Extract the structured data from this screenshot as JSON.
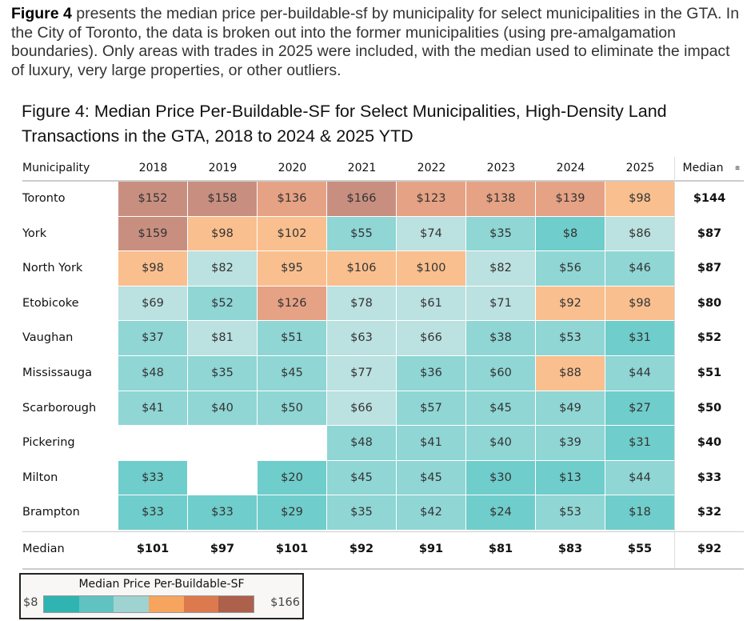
{
  "intro": {
    "bold": "Figure 4",
    "text": " presents the median price per-buildable-sf by municipality for select municipalities in the GTA. In the City of Toronto, the data is broken out into the former municipalities (using pre-amalgamation boundaries). Only areas with trades in 2025 were included, with the median used to eliminate the impact of luxury, very large properties, or other outliers."
  },
  "chart_data": {
    "type": "heatmap",
    "title": "Figure 4: Median Price Per-Buildable-SF for Select Municipalities, High-Density Land Transactions in the GTA, 2018 to 2024 & 2025 YTD",
    "row_header": "Municipality",
    "columns": [
      "2018",
      "2019",
      "2020",
      "2021",
      "2022",
      "2023",
      "2024",
      "2025"
    ],
    "median_header": "Median",
    "rows": [
      {
        "name": "Toronto",
        "values": [
          152,
          158,
          136,
          166,
          123,
          138,
          139,
          98
        ],
        "median": 144
      },
      {
        "name": "York",
        "values": [
          159,
          98,
          102,
          55,
          74,
          35,
          8,
          86
        ],
        "median": 87
      },
      {
        "name": "North York",
        "values": [
          98,
          82,
          95,
          106,
          100,
          82,
          56,
          46
        ],
        "median": 87
      },
      {
        "name": "Etobicoke",
        "values": [
          69,
          52,
          126,
          78,
          61,
          71,
          92,
          98
        ],
        "median": 80
      },
      {
        "name": "Vaughan",
        "values": [
          37,
          81,
          51,
          63,
          66,
          38,
          53,
          31
        ],
        "median": 52
      },
      {
        "name": "Mississauga",
        "values": [
          48,
          35,
          45,
          77,
          36,
          60,
          88,
          44
        ],
        "median": 51
      },
      {
        "name": "Scarborough",
        "values": [
          41,
          40,
          50,
          66,
          57,
          45,
          49,
          27
        ],
        "median": 50
      },
      {
        "name": "Pickering",
        "values": [
          null,
          null,
          null,
          48,
          41,
          40,
          39,
          31
        ],
        "median": 40
      },
      {
        "name": "Milton",
        "values": [
          33,
          null,
          20,
          45,
          45,
          30,
          13,
          44
        ],
        "median": 33
      },
      {
        "name": "Brampton",
        "values": [
          33,
          33,
          29,
          35,
          42,
          24,
          53,
          18
        ],
        "median": 32
      }
    ],
    "median_row": {
      "name": "Median",
      "values": [
        101,
        97,
        101,
        92,
        91,
        81,
        83,
        55
      ],
      "median": 92
    },
    "legend": {
      "title": "Median Price Per-Buildable-SF",
      "min_label": "$8",
      "max_label": "$166",
      "min": 8,
      "max": 166,
      "swatches": [
        "#2fb4b1",
        "#60c3c2",
        "#9ed3d1",
        "#f6a45e",
        "#dc7a4e",
        "#ad604b"
      ]
    },
    "cell_colors": {
      "dark_teal": "#6fcdcb",
      "teal": "#8fd6d5",
      "light_teal": "#bbe1e0",
      "peach": "#f9bf8e",
      "salmon": "#e6a284",
      "rose": "#c88f80"
    }
  }
}
